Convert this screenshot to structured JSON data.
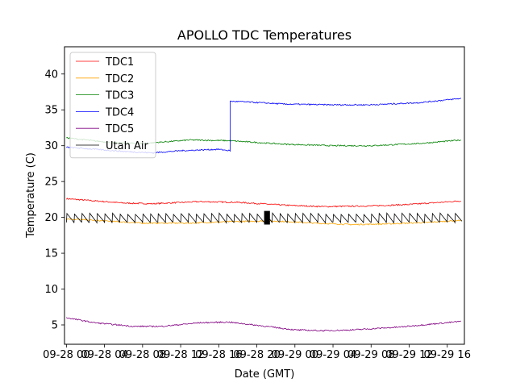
{
  "chart_data": {
    "type": "line",
    "title": "APOLLO TDC Temperatures",
    "xlabel": "Date (GMT)",
    "ylabel": "Temperature (C)",
    "xlim": [
      -0.2,
      41.8
    ],
    "ylim": [
      2.3,
      43.8
    ],
    "x_unit": "hours since 09-28 00:00 GMT",
    "x_ticks": [
      {
        "x": 0,
        "label": "09-28 00"
      },
      {
        "x": 4,
        "label": "09-28 04"
      },
      {
        "x": 8,
        "label": "09-28 08"
      },
      {
        "x": 12,
        "label": "09-28 12"
      },
      {
        "x": 16,
        "label": "09-28 16"
      },
      {
        "x": 20,
        "label": "09-28 20"
      },
      {
        "x": 24,
        "label": "09-29 00"
      },
      {
        "x": 28,
        "label": "09-29 04"
      },
      {
        "x": 32,
        "label": "09-29 08"
      },
      {
        "x": 36,
        "label": "09-29 12"
      },
      {
        "x": 40,
        "label": "09-29 16"
      }
    ],
    "y_ticks": [
      5,
      10,
      15,
      20,
      25,
      30,
      35,
      40
    ],
    "grid": false,
    "legend_position": "top-left",
    "series": [
      {
        "name": "TDC1",
        "color": "#ff0000",
        "x": [
          0,
          2,
          6,
          9,
          14,
          18,
          23,
          27,
          32,
          36,
          41.5
        ],
        "y": [
          22.6,
          22.4,
          22.0,
          21.9,
          22.2,
          22.1,
          21.7,
          21.5,
          21.6,
          21.8,
          22.3
        ]
      },
      {
        "name": "TDC2",
        "color": "#ffa500",
        "x": [
          0,
          4,
          8,
          13,
          17,
          21,
          23.5,
          26,
          30,
          34,
          38,
          41.5
        ],
        "y": [
          19.8,
          19.5,
          19.2,
          19.2,
          19.4,
          19.5,
          19.4,
          19.2,
          19.0,
          19.1,
          19.3,
          19.6
        ]
      },
      {
        "name": "TDC3",
        "color": "#008000",
        "x": [
          0,
          2,
          5,
          8,
          13,
          17,
          23,
          28,
          32,
          37,
          41.5
        ],
        "y": [
          31.1,
          30.8,
          30.4,
          30.3,
          30.8,
          30.7,
          30.2,
          30.0,
          30.0,
          30.3,
          30.8
        ]
      },
      {
        "name": "TDC4",
        "color": "#0000ff",
        "x": [
          0,
          3,
          6,
          9,
          12,
          16,
          17.2,
          17.21,
          19,
          23,
          28,
          32,
          37,
          41.5
        ],
        "y": [
          29.8,
          29.5,
          29.2,
          29.0,
          29.3,
          29.5,
          29.3,
          36.2,
          36.1,
          35.8,
          35.7,
          35.7,
          36.0,
          36.6
        ]
      },
      {
        "name": "TDC5",
        "color": "#800080",
        "x": [
          0,
          3,
          7,
          10,
          14,
          17,
          21,
          24,
          27,
          30,
          35,
          41.5
        ],
        "y": [
          6.0,
          5.3,
          4.8,
          4.8,
          5.3,
          5.4,
          4.8,
          4.3,
          4.2,
          4.3,
          4.7,
          5.5
        ]
      },
      {
        "name": "Utah Air",
        "color": "#000000",
        "baseline": 19.3,
        "spike_height": 1.2,
        "spike_period_hours": 0.8,
        "anomaly_x": 20.8,
        "anomaly_y_range": [
          19.0,
          20.9
        ]
      }
    ]
  }
}
